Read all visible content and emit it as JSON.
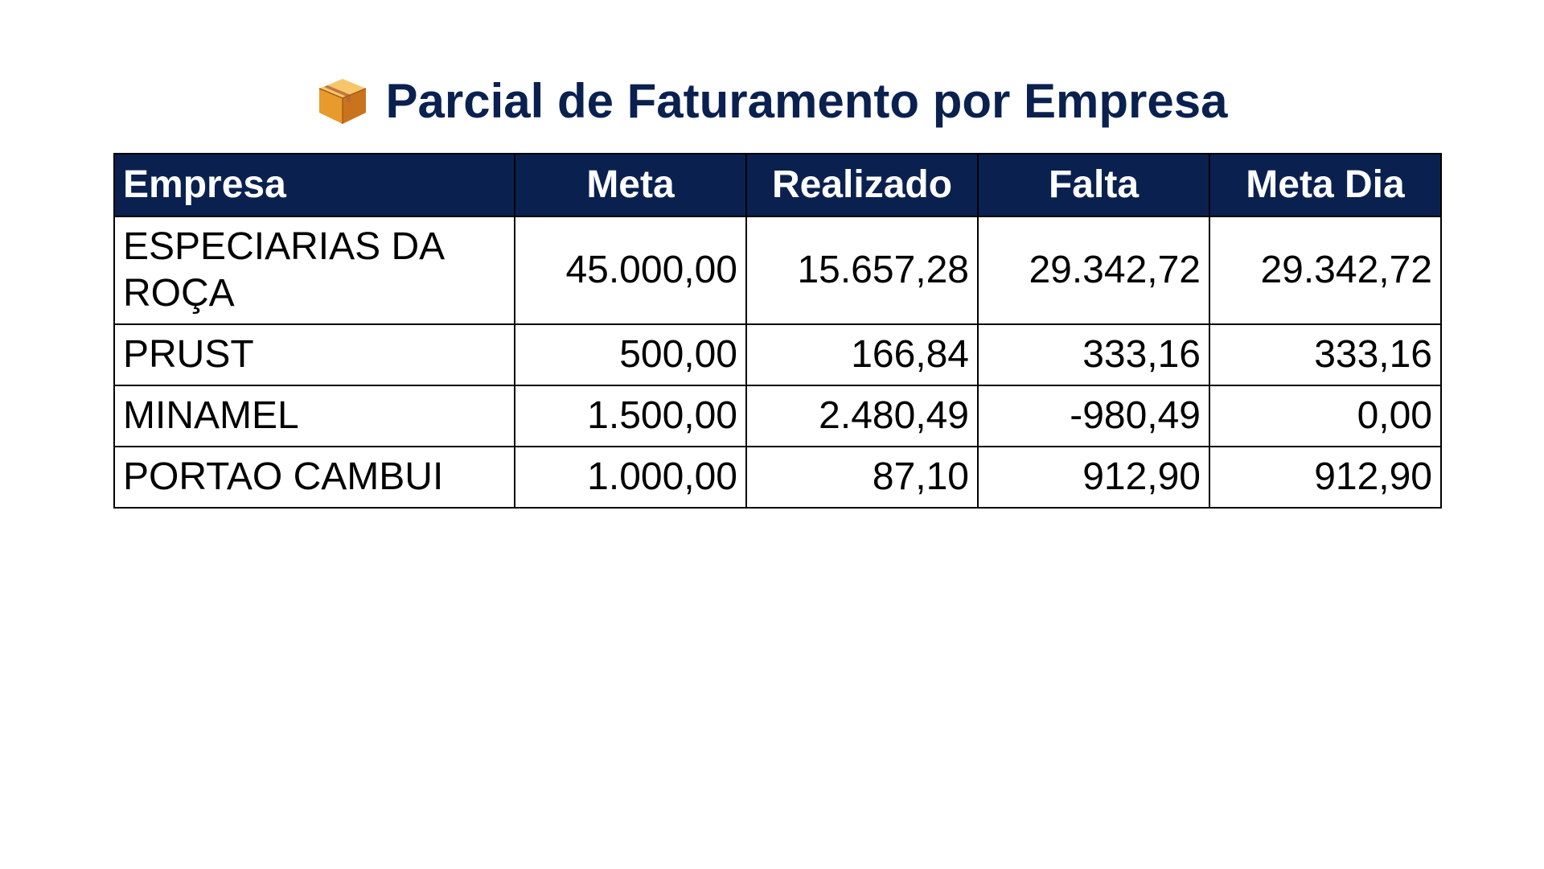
{
  "header": {
    "title": "Parcial de Faturamento por Empresa",
    "icon": "package-box-icon"
  },
  "table": {
    "columns": [
      "Empresa",
      "Meta",
      "Realizado",
      "Falta",
      "Meta Dia"
    ],
    "rows": [
      {
        "empresa": "ESPECIARIAS DA ROÇA",
        "meta": "45.000,00",
        "realizado": "15.657,28",
        "falta": "29.342,72",
        "meta_dia": "29.342,72"
      },
      {
        "empresa": "PRUST",
        "meta": "500,00",
        "realizado": "166,84",
        "falta": "333,16",
        "meta_dia": "333,16"
      },
      {
        "empresa": "MINAMEL",
        "meta": "1.500,00",
        "realizado": "2.480,49",
        "falta": "-980,49",
        "meta_dia": "0,00"
      },
      {
        "empresa": "PORTAO CAMBUI",
        "meta": "1.000,00",
        "realizado": "87,10",
        "falta": "912,90",
        "meta_dia": "912,90"
      }
    ]
  },
  "colors": {
    "header_bg": "#0a2150",
    "header_text": "#ffffff",
    "title_text": "#0a2150",
    "grid": "#000000"
  }
}
